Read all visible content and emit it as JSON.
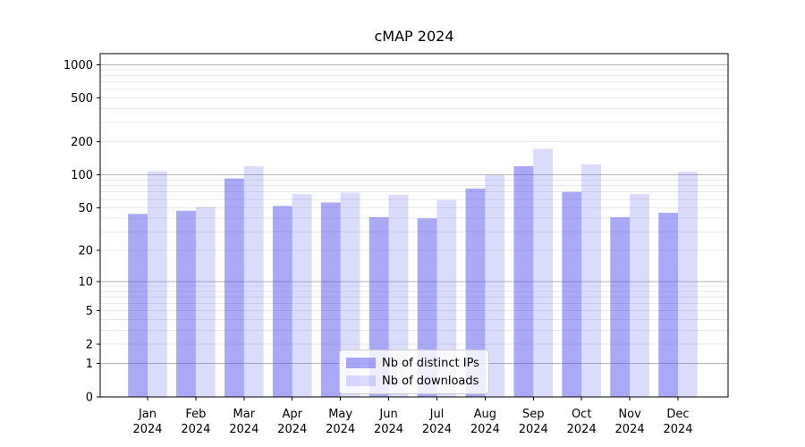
{
  "chart_data": {
    "type": "bar",
    "title": "cMAP 2024",
    "categories": [
      "Jan",
      "Feb",
      "Mar",
      "Apr",
      "May",
      "Jun",
      "Jul",
      "Aug",
      "Sep",
      "Oct",
      "Nov",
      "Dec"
    ],
    "x_year_suffix": "2024",
    "series": [
      {
        "name": "Nb of distinct IPs",
        "color": "rgba(83,83,239,0.50)",
        "values": [
          44,
          47,
          93,
          52,
          56,
          41,
          40,
          75,
          120,
          70,
          41,
          45
        ]
      },
      {
        "name": "Nb of downloads",
        "color": "rgba(83,83,239,0.21)",
        "values": [
          108,
          51,
          120,
          67,
          69,
          66,
          59,
          100,
          173,
          125,
          67,
          107
        ]
      }
    ],
    "y_axis": {
      "scale": "log10(1+v)",
      "tick_labels": [
        "0",
        "1",
        "2",
        "5",
        "10",
        "20",
        "50",
        "100",
        "200",
        "500",
        "1000"
      ],
      "major_grid": [
        1,
        10,
        100,
        1000
      ],
      "range_top": 1258
    },
    "legend": {
      "position": "lower-center"
    },
    "grid": true,
    "colors": {
      "axis": "#000000",
      "major_grid": "#b3b3b3",
      "minor_grid": "#e9e9e9",
      "legend_border": "#cccccc",
      "legend_bg": "rgba(255,255,255,0.8)",
      "text": "#000000"
    }
  }
}
